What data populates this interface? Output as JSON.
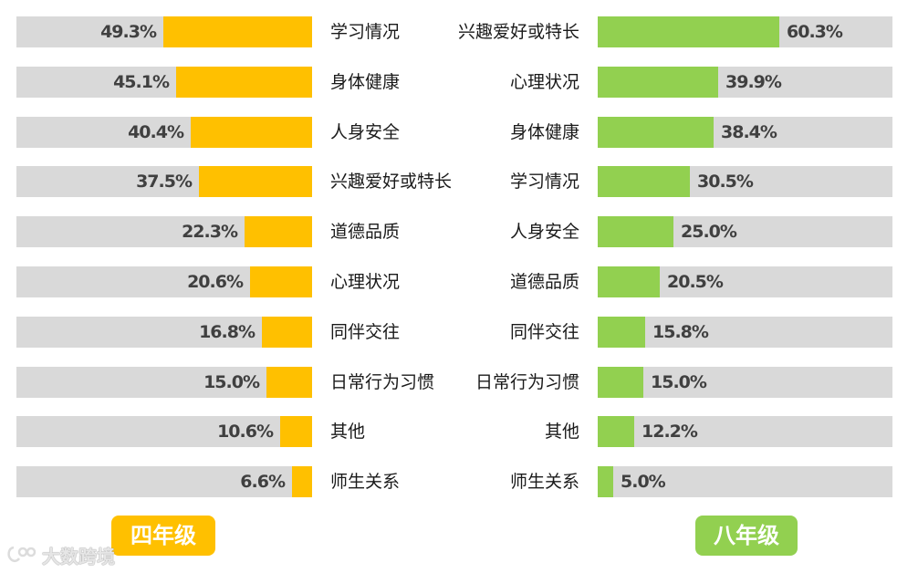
{
  "chart_data": [
    {
      "type": "bar",
      "orientation": "horizontal",
      "group_label": "四年级",
      "color": "#ffc000",
      "xlim": [
        0,
        100
      ],
      "categories": [
        "学习情况",
        "身体健康",
        "人身安全",
        "兴趣爱好或特长",
        "道德品质",
        "心理状况",
        "同伴交往",
        "日常行为习惯",
        "其他",
        "师生关系"
      ],
      "values": [
        49.3,
        45.1,
        40.4,
        37.5,
        22.3,
        20.6,
        16.8,
        15.0,
        10.6,
        6.6
      ],
      "value_labels": [
        "49.3%",
        "45.1%",
        "40.4%",
        "37.5%",
        "22.3%",
        "20.6%",
        "16.8%",
        "15.0%",
        "10.6%",
        "6.6%"
      ]
    },
    {
      "type": "bar",
      "orientation": "horizontal",
      "group_label": "八年级",
      "color": "#92d050",
      "xlim": [
        0,
        100
      ],
      "categories": [
        "兴趣爱好或特长",
        "心理状况",
        "身体健康",
        "学习情况",
        "人身安全",
        "道德品质",
        "同伴交往",
        "日常行为习惯",
        "其他",
        "师生关系"
      ],
      "values": [
        60.3,
        39.9,
        38.4,
        30.5,
        25.0,
        20.5,
        15.8,
        15.0,
        12.2,
        5.0
      ],
      "value_labels": [
        "60.3%",
        "39.9%",
        "38.4%",
        "30.5%",
        "25.0%",
        "20.5%",
        "15.8%",
        "15.0%",
        "12.2%",
        "5.0%"
      ]
    }
  ],
  "watermark": {
    "text": "大数跨境",
    "icon": "dashuju-logo-icon"
  }
}
